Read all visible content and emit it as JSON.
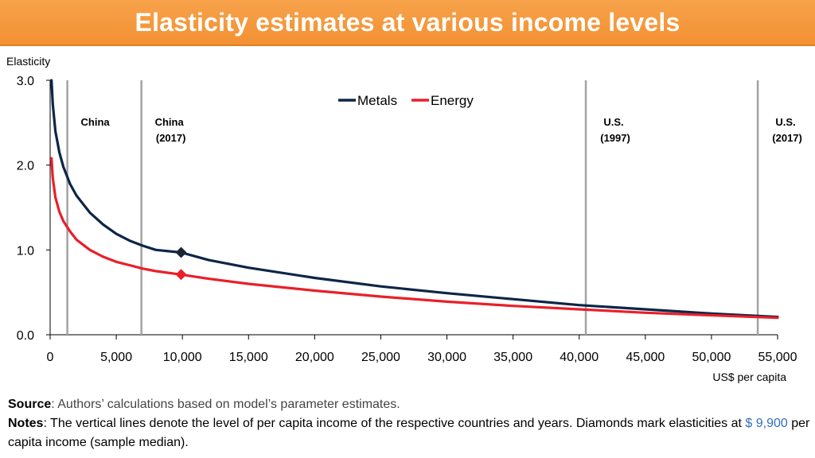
{
  "slide": {
    "title": "Elasticity estimates at various income levels"
  },
  "chart_data": {
    "type": "line",
    "title": "Elasticity estimates at various income levels",
    "ylabel": "Elasticity",
    "xlabel": "US$ per capita",
    "xlim": [
      0,
      55000
    ],
    "ylim": [
      0,
      3.0
    ],
    "x_ticks": [
      0,
      5000,
      10000,
      15000,
      20000,
      25000,
      30000,
      35000,
      40000,
      45000,
      50000,
      55000
    ],
    "x_tick_labels": [
      "0",
      "5,000",
      "10,000",
      "15,000",
      "20,000",
      "25,000",
      "30,000",
      "35,000",
      "40,000",
      "45,000",
      "50,000",
      "55,000"
    ],
    "y_ticks": [
      0,
      1,
      2,
      3
    ],
    "y_tick_labels": [
      "0.0",
      "1.0",
      "2.0",
      "3.0"
    ],
    "legend": [
      "Metals",
      "Energy"
    ],
    "legend_position": "top-center",
    "series": [
      {
        "name": "Metals",
        "color": "#0d2547",
        "x": [
          100,
          200,
          400,
          700,
          1000,
          1500,
          2000,
          3000,
          4000,
          5000,
          6000,
          7000,
          8000,
          9900,
          12000,
          15000,
          20000,
          25000,
          30000,
          35000,
          40000,
          45000,
          50000,
          55000
        ],
        "y": [
          3.0,
          2.72,
          2.4,
          2.15,
          1.98,
          1.78,
          1.64,
          1.44,
          1.3,
          1.19,
          1.11,
          1.05,
          1.0,
          0.97,
          0.88,
          0.79,
          0.67,
          0.57,
          0.49,
          0.42,
          0.35,
          0.3,
          0.25,
          0.21
        ]
      },
      {
        "name": "Energy",
        "color": "#e8202a",
        "x": [
          100,
          200,
          400,
          700,
          1000,
          1500,
          2000,
          3000,
          4000,
          5000,
          6000,
          7000,
          8000,
          9900,
          12000,
          15000,
          20000,
          25000,
          30000,
          35000,
          40000,
          45000,
          50000,
          55000
        ],
        "y": [
          2.08,
          1.85,
          1.62,
          1.45,
          1.34,
          1.22,
          1.12,
          1.0,
          0.92,
          0.86,
          0.82,
          0.78,
          0.75,
          0.71,
          0.66,
          0.6,
          0.52,
          0.45,
          0.39,
          0.34,
          0.3,
          0.26,
          0.23,
          0.2
        ]
      }
    ],
    "markers": [
      {
        "series": "Metals",
        "x": 9900,
        "y": 0.97,
        "shape": "diamond",
        "color": "#1a2433"
      },
      {
        "series": "Energy",
        "x": 9900,
        "y": 0.71,
        "shape": "diamond",
        "color": "#e8202a"
      }
    ],
    "vertical_lines": [
      {
        "x": 1300,
        "label_line1": "China",
        "label_line2": ""
      },
      {
        "x": 6900,
        "label_line1": "China",
        "label_line2": "(2017)"
      },
      {
        "x": 40500,
        "label_line1": "U.S.",
        "label_line2": "(1997)"
      },
      {
        "x": 53500,
        "label_line1": "U.S.",
        "label_line2": "(2017)"
      }
    ]
  },
  "footer": {
    "source_label": "Source",
    "source_text": ": Authors’ calculations based on model’s parameter estimates.",
    "notes_label": "Notes",
    "notes_text": ": The vertical lines denote the level of per capita income of the respective countries and years. Diamonds mark elasticities at ",
    "notes_value": "$ 9,900",
    "notes_tail": " per capita income (sample median)."
  }
}
